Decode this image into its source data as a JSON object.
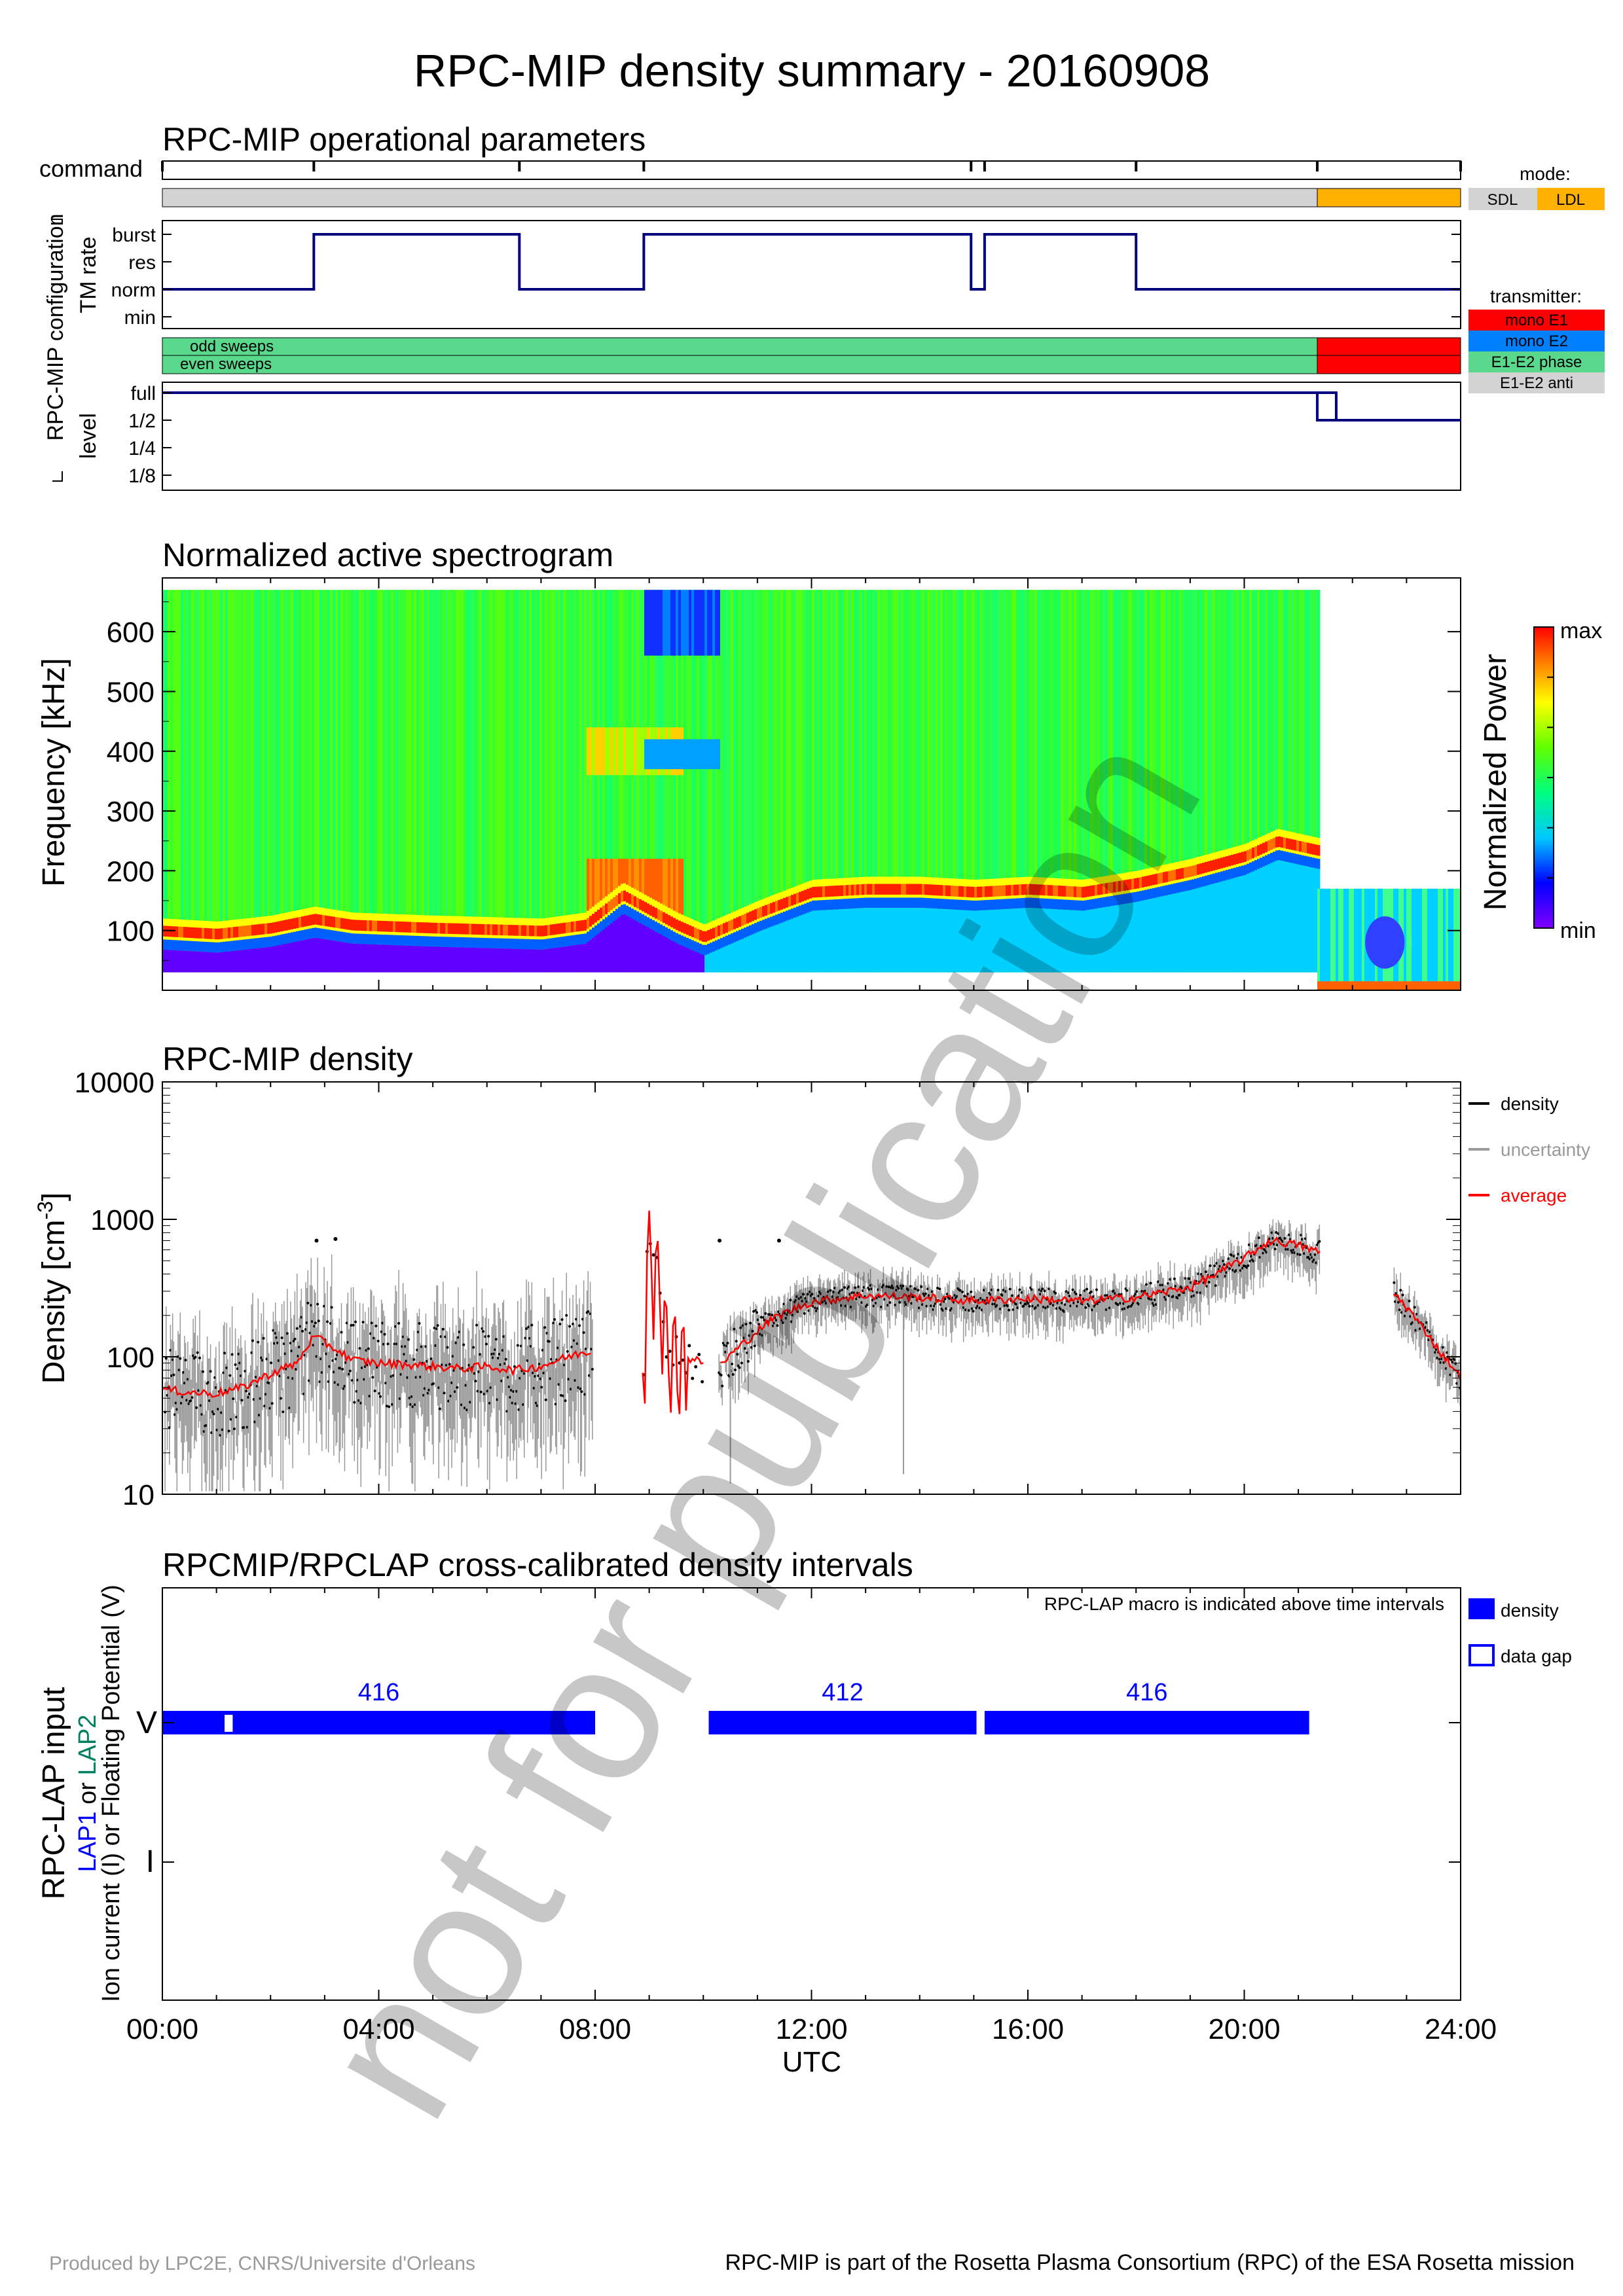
{
  "page_title": "RPC-MIP density summary - 20160908",
  "footer": {
    "left": "Produced by LPC2E, CNRS/Universite d'Orleans",
    "right": "RPC-MIP is part of the Rosetta Plasma Consortium (RPC) of the ESA Rosetta mission"
  },
  "watermark": "not for publication",
  "colors": {
    "navy": "#00007f",
    "sdl_gray": "#d3d3d3",
    "ldl_orange": "#ffb000",
    "mono_e1": "#ff0000",
    "mono_e2": "#0080ff",
    "e1e2_phase": "#5ad98c",
    "e1e2_anti": "#d3d3d3",
    "density": "#000000",
    "uncertainty": "#999999",
    "average": "#ff0000",
    "lap_blue": "#0000ff",
    "lap2_green": "#008060"
  },
  "ops_panel": {
    "title": "RPC-MIP operational parameters",
    "command_label": "command",
    "config_label": "RPC-MIP configuration",
    "tm_rate_label": "TM rate",
    "tm_levels": [
      "burst",
      "res",
      "norm",
      "min"
    ],
    "level_label": "level",
    "level_levels": [
      "full",
      "1/2",
      "1/4",
      "1/8"
    ],
    "sweeps_odd": "odd sweeps",
    "sweeps_even": "even sweeps",
    "mode_label": "mode:",
    "mode_items": [
      "SDL",
      "LDL"
    ],
    "transmitter_label": "transmitter:",
    "transmitter_items": [
      "mono E1",
      "mono E2",
      "E1-E2 phase",
      "E1-E2 anti"
    ]
  },
  "chart_data": [
    {
      "type": "step",
      "name": "command / mode / TM rate / transmitter / level",
      "x_unit": "hours UTC",
      "xlim": [
        0,
        24
      ],
      "command_times": [
        0,
        2.8,
        6.6,
        8.9,
        14.95,
        15.2,
        18.0,
        21.35,
        24
      ],
      "mode_segments": [
        {
          "start": 0,
          "end": 21.35,
          "mode": "SDL"
        },
        {
          "start": 21.35,
          "end": 24,
          "mode": "LDL"
        }
      ],
      "tm_rate_steps": [
        {
          "start": 0,
          "end": 2.8,
          "level": "norm"
        },
        {
          "start": 2.8,
          "end": 6.6,
          "level": "burst"
        },
        {
          "start": 6.6,
          "end": 8.9,
          "level": "norm"
        },
        {
          "start": 8.9,
          "end": 14.95,
          "level": "burst"
        },
        {
          "start": 14.95,
          "end": 15.2,
          "level": "norm"
        },
        {
          "start": 15.2,
          "end": 18.0,
          "level": "burst"
        },
        {
          "start": 18.0,
          "end": 24,
          "level": "norm"
        }
      ],
      "transmitter_segments": [
        {
          "start": 0,
          "end": 21.35,
          "tx": "E1-E2 phase"
        },
        {
          "start": 21.35,
          "end": 24,
          "tx": "mono E1"
        }
      ],
      "level_steps": [
        {
          "start": 0,
          "end": 21.35,
          "level": "full"
        },
        {
          "start": 21.35,
          "end": 22.2,
          "level": "full/half"
        },
        {
          "start": 22.2,
          "end": 24,
          "level": "1/2"
        }
      ]
    },
    {
      "type": "heatmap",
      "title": "Normalized active spectrogram",
      "ylabel": "Frequency [kHz]",
      "yticks": [
        "100",
        "200",
        "300",
        "400",
        "500",
        "600"
      ],
      "ylim": [
        0,
        690
      ],
      "xlim": [
        0,
        24
      ],
      "colorbar_label": "Normalized Power",
      "colorbar_max": "max",
      "colorbar_min": "min",
      "sdl_fmax_khz": 670,
      "sdl_fmin_khz": 30,
      "ldl_start_hour": 21.35,
      "ldl_fmax_khz": 170,
      "plasma_line_khz": [
        [
          0,
          90
        ],
        [
          1,
          85
        ],
        [
          2,
          95
        ],
        [
          2.8,
          110
        ],
        [
          3.5,
          100
        ],
        [
          5,
          95
        ],
        [
          7,
          90
        ],
        [
          7.8,
          100
        ],
        [
          8.5,
          150
        ],
        [
          9.5,
          100
        ],
        [
          10,
          80
        ],
        [
          11,
          120
        ],
        [
          12,
          155
        ],
        [
          13,
          160
        ],
        [
          14,
          160
        ],
        [
          15,
          155
        ],
        [
          16,
          160
        ],
        [
          17,
          155
        ],
        [
          18,
          170
        ],
        [
          19,
          190
        ],
        [
          20,
          215
        ],
        [
          20.6,
          240
        ],
        [
          21.35,
          225
        ]
      ]
    },
    {
      "type": "scatter",
      "title": "RPC-MIP density",
      "ylabel": "Density [cm-3]",
      "yscale": "log",
      "ylim": [
        10,
        10000
      ],
      "yticks": [
        "10",
        "100",
        "1000",
        "10000"
      ],
      "xlim": [
        0,
        24
      ],
      "legend": [
        "density",
        "uncertainty",
        "average"
      ],
      "legend_position": "right",
      "average_series": [
        [
          0,
          58
        ],
        [
          0.5,
          55
        ],
        [
          1,
          54
        ],
        [
          1.5,
          60
        ],
        [
          2,
          75
        ],
        [
          2.5,
          90
        ],
        [
          2.8,
          140
        ],
        [
          3.1,
          120
        ],
        [
          3.5,
          95
        ],
        [
          4,
          90
        ],
        [
          4.5,
          88
        ],
        [
          5,
          85
        ],
        [
          5.5,
          82
        ],
        [
          6,
          85
        ],
        [
          6.5,
          80
        ],
        [
          7,
          85
        ],
        [
          7.5,
          100
        ],
        [
          7.9,
          110
        ],
        [
          8.9,
          90
        ],
        [
          9.0,
          700
        ],
        [
          9.3,
          140
        ],
        [
          9.6,
          100
        ],
        [
          10.3,
          85
        ],
        [
          10.8,
          130
        ],
        [
          11.3,
          190
        ],
        [
          12,
          250
        ],
        [
          13,
          280
        ],
        [
          14,
          270
        ],
        [
          15,
          255
        ],
        [
          16,
          265
        ],
        [
          17,
          255
        ],
        [
          18,
          270
        ],
        [
          19,
          320
        ],
        [
          19.5,
          400
        ],
        [
          20,
          520
        ],
        [
          20.5,
          700
        ],
        [
          21,
          650
        ],
        [
          21.35,
          580
        ],
        [
          22.8,
          280
        ],
        [
          23.2,
          180
        ],
        [
          23.6,
          110
        ],
        [
          24,
          70
        ]
      ],
      "outliers": [
        [
          2.85,
          700
        ],
        [
          3.2,
          720
        ],
        [
          10.3,
          700
        ],
        [
          11.4,
          700
        ]
      ]
    },
    {
      "type": "interval",
      "title": "RPCMIP/RPCLAP cross-calibrated density intervals",
      "ylabel": "RPC-LAP input",
      "ylabel_lap1": "LAP1",
      "ylabel_or": "or",
      "ylabel_lap2": "LAP2",
      "ylabel_line2": "Ion current (I) or Floating Potential (V)",
      "yticks": [
        "V",
        "I"
      ],
      "xlabel": "UTC",
      "xticks": [
        "00:00",
        "04:00",
        "08:00",
        "12:00",
        "16:00",
        "20:00",
        "24:00"
      ],
      "note": "RPC-LAP macro is indicated above time intervals",
      "legend": [
        "density",
        "data gap"
      ],
      "intervals": [
        {
          "start": 0.0,
          "end": 8.0,
          "macro": "416",
          "gaps": [
            [
              1.15,
              1.3
            ]
          ]
        },
        {
          "start": 10.1,
          "end": 15.05,
          "macro": "412",
          "gaps": []
        },
        {
          "start": 15.2,
          "end": 21.2,
          "macro": "416",
          "gaps": []
        }
      ]
    }
  ]
}
